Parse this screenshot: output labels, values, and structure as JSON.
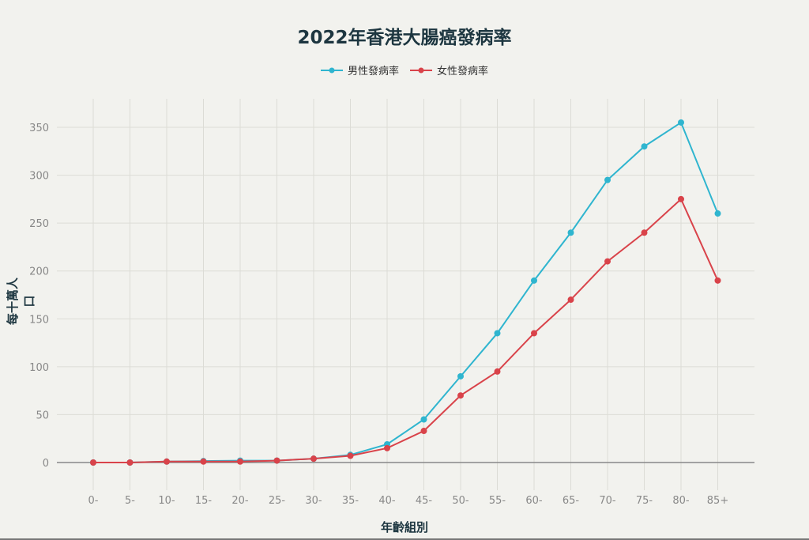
{
  "title": "2022年香港大腸癌發病率",
  "legend": [
    {
      "label": "男性發病率",
      "color": "#2fb5cf"
    },
    {
      "label": "女性發病率",
      "color": "#d9434a"
    }
  ],
  "axes": {
    "ylabel": "每十萬人口",
    "xlabel": "年齡組別"
  },
  "chart_data": {
    "type": "line",
    "title": "2022年香港大腸癌發病率",
    "xlabel": "年齡組別",
    "ylabel": "每十萬人口",
    "categories": [
      "0-",
      "5-",
      "10-",
      "15-",
      "20-",
      "25-",
      "30-",
      "35-",
      "40-",
      "45-",
      "50-",
      "55-",
      "60-",
      "65-",
      "70-",
      "75-",
      "80-",
      "85+"
    ],
    "yticks": [
      0,
      50,
      100,
      150,
      200,
      250,
      300,
      350
    ],
    "ylim": [
      0,
      380
    ],
    "grid": true,
    "legend_position": "top",
    "series": [
      {
        "name": "男性發病率",
        "color": "#2fb5cf",
        "values": [
          0,
          0,
          1,
          1.5,
          2,
          2,
          4,
          8,
          19,
          45,
          90,
          135,
          190,
          240,
          295,
          330,
          355,
          260
        ]
      },
      {
        "name": "女性發病率",
        "color": "#d9434a",
        "values": [
          0,
          0,
          1,
          1,
          1,
          2,
          4,
          7,
          15,
          33,
          70,
          95,
          135,
          170,
          210,
          240,
          275,
          190
        ]
      }
    ]
  }
}
